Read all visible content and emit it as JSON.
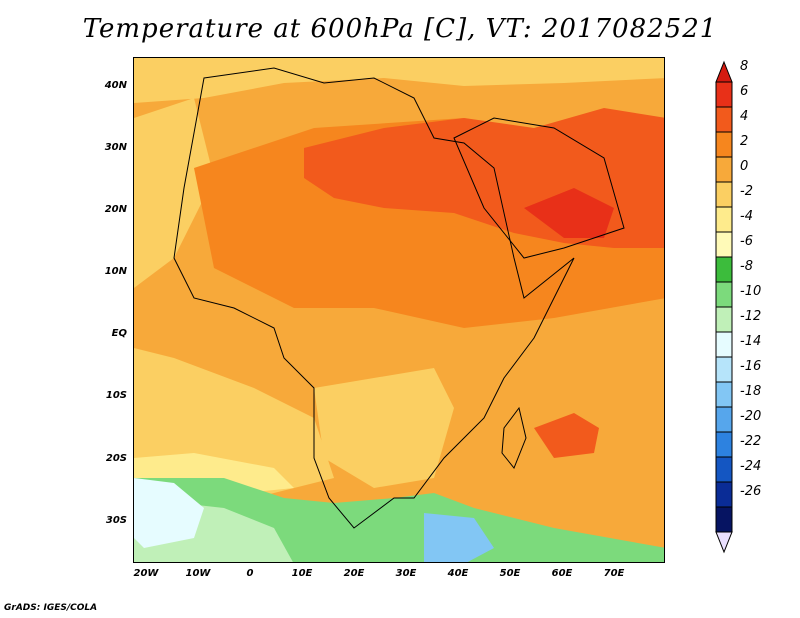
{
  "title": "Temperature at 600hPa [C], VT: 2017082521",
  "credit": "GrADS: IGES/COLA",
  "axes": {
    "lat_labels": [
      "40N",
      "30N",
      "20N",
      "10N",
      "EQ",
      "10S",
      "20S",
      "30S"
    ],
    "lon_labels": [
      "20W",
      "10W",
      "0",
      "10E",
      "20E",
      "30E",
      "40E",
      "50E",
      "60E",
      "70E"
    ]
  },
  "colorbar": {
    "labels": [
      "8",
      "6",
      "4",
      "2",
      "0",
      "-2",
      "-4",
      "-6",
      "-8",
      "-10",
      "-12",
      "-14",
      "-16",
      "-18",
      "-20",
      "-22",
      "-24",
      "-26"
    ],
    "colors": [
      "#e83018",
      "#f25a1c",
      "#f6861e",
      "#f7a93a",
      "#fbcf62",
      "#feeb8c",
      "#fffab8",
      "#3cbc3c",
      "#7cda7c",
      "#c0f0b8",
      "#e6fcff",
      "#b6e4fa",
      "#82c6f4",
      "#56a6ec",
      "#2d82e0",
      "#1456c2",
      "#0a2c96",
      "#061462"
    ],
    "overflow_top_color": "#d41a10",
    "overflow_bottom_color": "#eae0ff"
  },
  "field": {
    "background": "#f7a93a",
    "hot_color": "#f25a1c",
    "hotter_color": "#e83018",
    "warm_color": "#f6861e",
    "mild_color": "#fbcf62",
    "cool_color": "#feeb8c",
    "green_color": "#7cda7c",
    "light_green_color": "#c0f0b8",
    "cyan_color": "#e6fcff",
    "blue_color": "#82c6f4",
    "coast_color": "#000000"
  }
}
